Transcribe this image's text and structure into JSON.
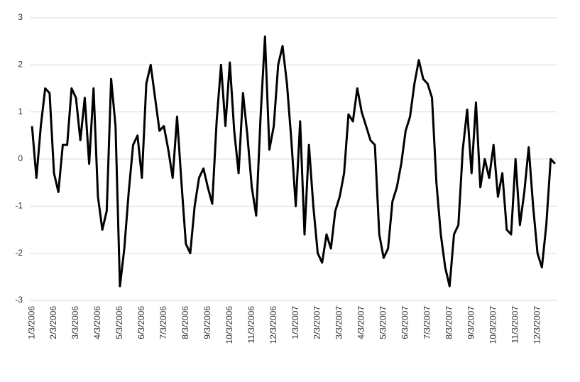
{
  "chart_data": {
    "type": "line",
    "categories": [
      "1/3/2006",
      null,
      null,
      null,
      null,
      "2/3/2006",
      null,
      null,
      null,
      null,
      "3/3/2006",
      null,
      null,
      null,
      null,
      "4/3/2006",
      null,
      null,
      null,
      null,
      "5/3/2006",
      null,
      null,
      null,
      null,
      "6/3/2006",
      null,
      null,
      null,
      null,
      "7/3/2006",
      null,
      null,
      null,
      null,
      "8/3/2006",
      null,
      null,
      null,
      null,
      "9/3/2006",
      null,
      null,
      null,
      null,
      "10/3/2006",
      null,
      null,
      null,
      null,
      "11/3/2006",
      null,
      null,
      null,
      null,
      "12/3/2006",
      null,
      null,
      null,
      null,
      "1/3/2007",
      null,
      null,
      null,
      null,
      "2/3/2007",
      null,
      null,
      null,
      null,
      "3/3/2007",
      null,
      null,
      null,
      null,
      "4/3/2007",
      null,
      null,
      null,
      null,
      "5/3/2007",
      null,
      null,
      null,
      null,
      "6/3/2007",
      null,
      null,
      null,
      null,
      "7/3/2007",
      null,
      null,
      null,
      null,
      "8/3/2007",
      null,
      null,
      null,
      null,
      "9/3/2007",
      null,
      null,
      null,
      null,
      "10/3/2007",
      null,
      null,
      null,
      null,
      "11/3/2007",
      null,
      null,
      null,
      null,
      "12/3/2007",
      null,
      null,
      null,
      null
    ],
    "values": [
      0.7,
      -0.4,
      0.7,
      1.5,
      1.4,
      -0.3,
      -0.7,
      0.3,
      0.3,
      1.5,
      1.3,
      0.4,
      1.3,
      -0.1,
      1.5,
      -0.8,
      -1.5,
      -1.1,
      1.7,
      0.7,
      -2.7,
      -1.9,
      -0.7,
      0.3,
      0.5,
      -0.4,
      1.6,
      2.0,
      1.3,
      0.6,
      0.7,
      0.2,
      -0.4,
      0.9,
      -0.5,
      -1.8,
      -2.0,
      -1.0,
      -0.4,
      -0.2,
      -0.6,
      -0.95,
      0.8,
      2.0,
      0.7,
      2.05,
      0.6,
      -0.3,
      1.4,
      0.5,
      -0.6,
      -1.2,
      0.9,
      2.6,
      0.2,
      0.7,
      2.0,
      2.4,
      1.6,
      0.4,
      -1.0,
      0.8,
      -1.6,
      0.3,
      -1.0,
      -2.0,
      -2.2,
      -1.6,
      -1.9,
      -1.1,
      -0.8,
      -0.3,
      0.95,
      0.8,
      1.5,
      1.0,
      0.7,
      0.4,
      0.3,
      -1.6,
      -2.1,
      -1.9,
      -0.9,
      -0.6,
      -0.1,
      0.6,
      0.9,
      1.6,
      2.1,
      1.7,
      1.6,
      1.3,
      -0.5,
      -1.6,
      -2.3,
      -2.7,
      -1.6,
      -1.4,
      0.2,
      1.05,
      -0.3,
      1.2,
      -0.6,
      0.0,
      -0.4,
      0.3,
      -0.8,
      -0.3,
      -1.5,
      -1.6,
      0.0,
      -1.4,
      -0.7,
      0.25,
      -1.0,
      -2.0,
      -2.3,
      -1.4,
      0.0,
      -0.1
    ],
    "color": "#000000",
    "ylim": [
      -3,
      3
    ],
    "yticks": [
      -3,
      -2,
      -1,
      0,
      1,
      2,
      3
    ],
    "grid": true
  }
}
